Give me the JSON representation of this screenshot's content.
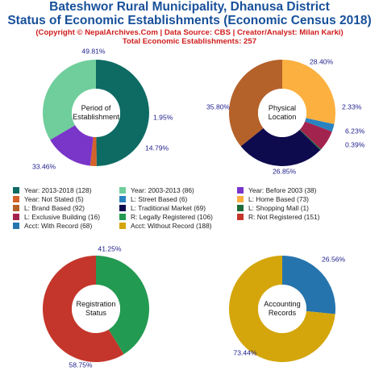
{
  "header": {
    "title_line1": "Bateshwor Rural Municipality, Dhanusa District",
    "title_line2": "Status of Economic Establishments (Economic Census 2018)",
    "copyright": "(Copyright © NepalArchives.Com | Data Source: CBS | Creator/Analyst: Milan Karki)",
    "total": "Total Economic Establishments: 257"
  },
  "chart_data": [
    {
      "type": "pie",
      "center_label": [
        "Period of",
        "Establishment"
      ],
      "slices": [
        {
          "label": "Year: 2013-2018",
          "value": 128,
          "percent_label": "49.81%",
          "color": "#0e6b64"
        },
        {
          "label": "Year: Not Stated",
          "value": 5,
          "percent_label": "1.95%",
          "color": "#d4622a"
        },
        {
          "label": "Year: Before 2003",
          "value": 38,
          "percent_label": "14.79%",
          "color": "#7a35c9"
        },
        {
          "label": "Year: 2003-2013",
          "value": 86,
          "percent_label": "33.46%",
          "color": "#6fce9c"
        }
      ]
    },
    {
      "type": "pie",
      "center_label": [
        "Physical",
        "Location"
      ],
      "slices": [
        {
          "label": "L: Home Based",
          "value": 73,
          "percent_label": "28.40%",
          "color": "#fbb040"
        },
        {
          "label": "L: Street Based",
          "value": 6,
          "percent_label": "2.33%",
          "color": "#2a83c0"
        },
        {
          "label": "L: Exclusive Building",
          "value": 16,
          "percent_label": "6.23%",
          "color": "#a3234f"
        },
        {
          "label": "L: Shopping Mall",
          "value": 1,
          "percent_label": "0.39%",
          "color": "#1f6b3a"
        },
        {
          "label": "L: Traditional Market",
          "value": 69,
          "percent_label": "26.85%",
          "color": "#0e0a4e"
        },
        {
          "label": "L: Brand Based",
          "value": 92,
          "percent_label": "35.80%",
          "color": "#b5612a"
        }
      ]
    },
    {
      "type": "pie",
      "center_label": [
        "Registration",
        "Status"
      ],
      "slices": [
        {
          "label": "R: Legally Registered",
          "value": 106,
          "percent_label": "41.25%",
          "color": "#239a52"
        },
        {
          "label": "R: Not Registered",
          "value": 151,
          "percent_label": "58.75%",
          "color": "#c4362b"
        }
      ]
    },
    {
      "type": "pie",
      "center_label": [
        "Accounting",
        "Records"
      ],
      "slices": [
        {
          "label": "Acct: With Record",
          "value": 68,
          "percent_label": "26.56%",
          "color": "#2674ad"
        },
        {
          "label": "Acct: Without Record",
          "value": 188,
          "percent_label": "73.44%",
          "color": "#d4a60c"
        }
      ]
    }
  ],
  "legend": [
    [
      {
        "label": "Year: 2013-2018 (128)",
        "color": "#0e6b64"
      },
      {
        "label": "Year: 2003-2013 (86)",
        "color": "#6fce9c"
      },
      {
        "label": "Year: Before 2003 (38)",
        "color": "#7a35c9"
      }
    ],
    [
      {
        "label": "Year: Not Stated (5)",
        "color": "#d4622a"
      },
      {
        "label": "L: Street Based (6)",
        "color": "#2a83c0"
      },
      {
        "label": "L: Home Based (73)",
        "color": "#fbb040"
      }
    ],
    [
      {
        "label": "L: Brand Based (92)",
        "color": "#b5612a"
      },
      {
        "label": "L: Traditional Market (69)",
        "color": "#0e0a4e"
      },
      {
        "label": "L: Shopping Mall (1)",
        "color": "#1f6b3a"
      }
    ],
    [
      {
        "label": "L: Exclusive Building (16)",
        "color": "#a3234f"
      },
      {
        "label": "R: Legally Registered (106)",
        "color": "#239a52"
      },
      {
        "label": "R: Not Registered (151)",
        "color": "#c4362b"
      }
    ],
    [
      {
        "label": "Acct: With Record (68)",
        "color": "#2674ad"
      },
      {
        "label": "Acct: Without Record (188)",
        "color": "#d4a60c"
      },
      {
        "label": "",
        "color": ""
      }
    ]
  ]
}
